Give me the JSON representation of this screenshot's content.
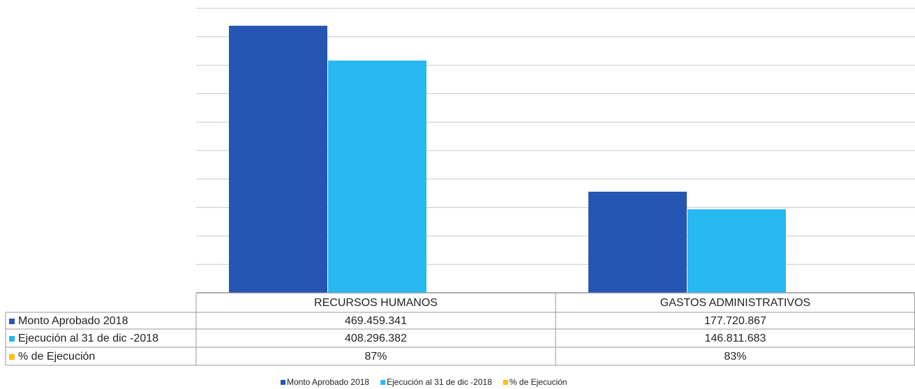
{
  "chart_data": {
    "type": "bar",
    "categories": [
      "RECURSOS HUMANOS",
      "GASTOS ADMINISTRATIVOS"
    ],
    "series": [
      {
        "name": "Monto Aprobado 2018",
        "color": "#2556b4",
        "values": [
          469459341,
          177720867
        ],
        "value_labels": [
          "469.459.341",
          "177.720.867"
        ]
      },
      {
        "name": "Ejecución al 31 de dic -2018",
        "color": "#27b9f0",
        "values": [
          408296382,
          146811683
        ],
        "value_labels": [
          "408.296.382",
          "146.811.683"
        ]
      },
      {
        "name": "% de Ejecución",
        "color": "#ffc000",
        "axis": "y2",
        "values": [
          87,
          83
        ],
        "value_labels": [
          "87%",
          "83%"
        ]
      }
    ],
    "ylim": [
      0,
      500000000
    ],
    "yticks": [
      0,
      50000000,
      100000000,
      150000000,
      200000000,
      250000000,
      300000000,
      350000000,
      400000000,
      450000000,
      500000000
    ],
    "grid": true
  }
}
